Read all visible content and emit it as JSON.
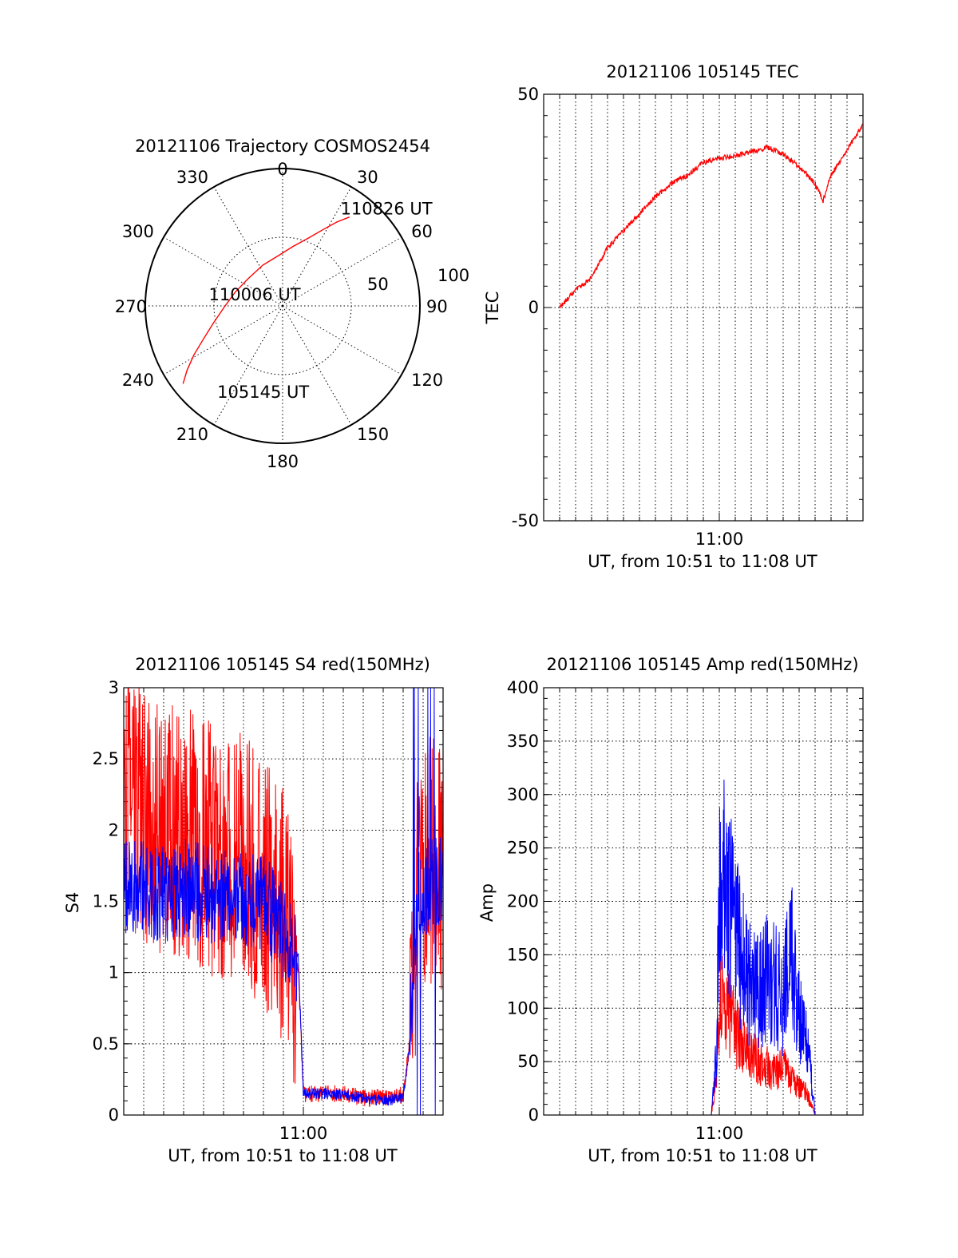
{
  "chart_data": [
    {
      "type": "polar",
      "title": "20121106 Trajectory COSMOS2454",
      "azimuth_labels": [
        "0",
        "30",
        "60",
        "90",
        "120",
        "150",
        "180",
        "210",
        "240",
        "270",
        "300",
        "330"
      ],
      "azimuth_deg": [
        0,
        30,
        60,
        90,
        120,
        150,
        180,
        210,
        240,
        270,
        300,
        330
      ],
      "radius_labels": [
        "50",
        "100"
      ],
      "radius_values": [
        50,
        100
      ],
      "rlim": [
        0,
        100
      ],
      "grid": true,
      "color": "#ff0000",
      "series": [
        {
          "points": [
            {
              "az": 232,
              "r": 92
            },
            {
              "az": 236,
              "r": 84
            },
            {
              "az": 241,
              "r": 74
            },
            {
              "az": 247,
              "r": 63
            },
            {
              "az": 256,
              "r": 52
            },
            {
              "az": 268,
              "r": 43
            },
            {
              "az": 286,
              "r": 36
            },
            {
              "az": 308,
              "r": 32
            },
            {
              "az": 334,
              "r": 33
            },
            {
              "az": 356,
              "r": 37
            },
            {
              "az": 10,
              "r": 44
            },
            {
              "az": 21,
              "r": 53
            },
            {
              "az": 28,
              "r": 63
            },
            {
              "az": 33,
              "r": 73
            },
            {
              "az": 37,
              "r": 81
            }
          ]
        }
      ],
      "annotations": [
        {
          "text": "110826 UT",
          "az": 32,
          "r": 84
        },
        {
          "text": "110006 UT",
          "az": 296,
          "r": 20
        },
        {
          "text": "105145 UT",
          "az": 216,
          "r": 77
        }
      ]
    },
    {
      "type": "line",
      "title": "20121106 105145 TEC",
      "xlabel": "UT, from 10:51 to 11:08 UT",
      "ylabel": "TEC",
      "xlim": [
        "10:49",
        "11:09"
      ],
      "ylim": [
        -50,
        50
      ],
      "yticks": [
        -50,
        0,
        50
      ],
      "ytick_labels": [
        "-50",
        "0",
        "50"
      ],
      "xtick_labels": [
        {
          "t": "11:00",
          "label": "11:00"
        }
      ],
      "grid": true,
      "series": [
        {
          "color": "#ff0000",
          "x": [
            "10:50",
            "10:51",
            "10:52",
            "10:53",
            "10:54",
            "10:55",
            "10:56",
            "10:57",
            "10:58",
            "10:59",
            "11:00",
            "11:01",
            "11:02",
            "11:03",
            "11:04",
            "11:05",
            "11:06",
            "11:06:30",
            "11:07",
            "11:08",
            "11:09"
          ],
          "y": [
            0,
            4,
            7,
            14,
            18,
            22,
            26,
            29,
            31,
            34,
            35,
            35.5,
            36.5,
            37.5,
            36,
            33,
            29,
            25,
            31,
            37,
            43
          ]
        }
      ]
    },
    {
      "type": "line",
      "title": "20121106 105145 S4 red(150MHz)",
      "xlabel": "UT, from 10:51 to 11:08 UT",
      "ylabel": "S4",
      "xlim": [
        "10:51",
        "11:07"
      ],
      "ylim": [
        0,
        3
      ],
      "yticks": [
        0,
        0.5,
        1,
        1.5,
        2,
        2.5,
        3
      ],
      "ytick_labels": [
        "0",
        "0.5",
        "1",
        "1.5",
        "2",
        "2.5",
        "3"
      ],
      "xtick_labels": [
        {
          "t": "11:00",
          "label": "11:00"
        }
      ],
      "grid": true,
      "series": [
        {
          "name": "red",
          "color": "#ff0000",
          "x": [
            "10:51:00",
            "10:52:00",
            "10:53:00",
            "10:54:00",
            "10:55:00",
            "10:56:00",
            "10:57:00",
            "10:58:00",
            "10:59:00",
            "10:59:45",
            "11:00:00",
            "11:01:00",
            "11:02:00",
            "11:03:00",
            "11:04:00",
            "11:05:00",
            "11:05:20",
            "11:05:40",
            "11:06:00",
            "11:07:00"
          ],
          "y": [
            2.2,
            2.1,
            2.0,
            2.0,
            1.9,
            1.8,
            1.8,
            1.6,
            1.4,
            1.0,
            0.15,
            0.15,
            0.15,
            0.12,
            0.12,
            0.14,
            0.5,
            1.4,
            1.8,
            1.7
          ]
        },
        {
          "name": "blue",
          "color": "#0000ff",
          "x": [
            "10:51:00",
            "10:52:00",
            "10:53:00",
            "10:54:00",
            "10:55:00",
            "10:56:00",
            "10:57:00",
            "10:58:00",
            "10:59:00",
            "10:59:45",
            "11:00:00",
            "11:01:00",
            "11:02:00",
            "11:03:00",
            "11:04:00",
            "11:05:00",
            "11:05:20",
            "11:05:40",
            "11:06:00",
            "11:07:00"
          ],
          "y": [
            1.6,
            1.6,
            1.55,
            1.6,
            1.55,
            1.55,
            1.5,
            1.5,
            1.3,
            1.1,
            0.15,
            0.15,
            0.14,
            0.12,
            0.1,
            0.12,
            0.5,
            1.5,
            1.6,
            1.6
          ]
        }
      ]
    },
    {
      "type": "line",
      "title": "20121106 105145 Amp red(150MHz)",
      "xlabel": "UT, from 10:51 to 11:08 UT",
      "ylabel": "Amp",
      "xlim": [
        "10:49",
        "11:09"
      ],
      "ylim": [
        0,
        400
      ],
      "yticks": [
        0,
        50,
        100,
        150,
        200,
        250,
        300,
        350,
        400
      ],
      "ytick_labels": [
        "0",
        "50",
        "100",
        "150",
        "200",
        "250",
        "300",
        "350",
        "400"
      ],
      "xtick_labels": [
        {
          "t": "11:00",
          "label": "11:00"
        }
      ],
      "grid": true,
      "series": [
        {
          "name": "red",
          "color": "#ff0000",
          "x": [
            "10:50:00",
            "10:59:30",
            "10:59:50",
            "11:00:00",
            "11:00:20",
            "11:00:40",
            "11:01:00",
            "11:01:30",
            "11:02:00",
            "11:02:30",
            "11:03:00",
            "11:03:30",
            "11:04:00",
            "11:04:30",
            "11:05:00",
            "11:05:30",
            "11:06:00",
            "11:07:00",
            "11:09:00"
          ],
          "y": [
            0,
            0,
            40,
            110,
            105,
            95,
            80,
            65,
            55,
            50,
            45,
            40,
            45,
            35,
            25,
            20,
            0,
            0,
            0
          ]
        },
        {
          "name": "blue",
          "color": "#0000ff",
          "x": [
            "10:50:00",
            "10:59:30",
            "10:59:50",
            "11:00:00",
            "11:00:15",
            "11:00:30",
            "11:00:45",
            "11:01:00",
            "11:01:30",
            "11:02:00",
            "11:02:30",
            "11:03:00",
            "11:03:30",
            "11:04:00",
            "11:04:30",
            "11:05:00",
            "11:05:30",
            "11:06:00",
            "11:07:00",
            "11:09:00"
          ],
          "y": [
            0,
            0,
            60,
            230,
            260,
            210,
            190,
            170,
            140,
            120,
            110,
            140,
            120,
            110,
            150,
            90,
            70,
            0,
            0,
            0
          ]
        }
      ]
    }
  ]
}
